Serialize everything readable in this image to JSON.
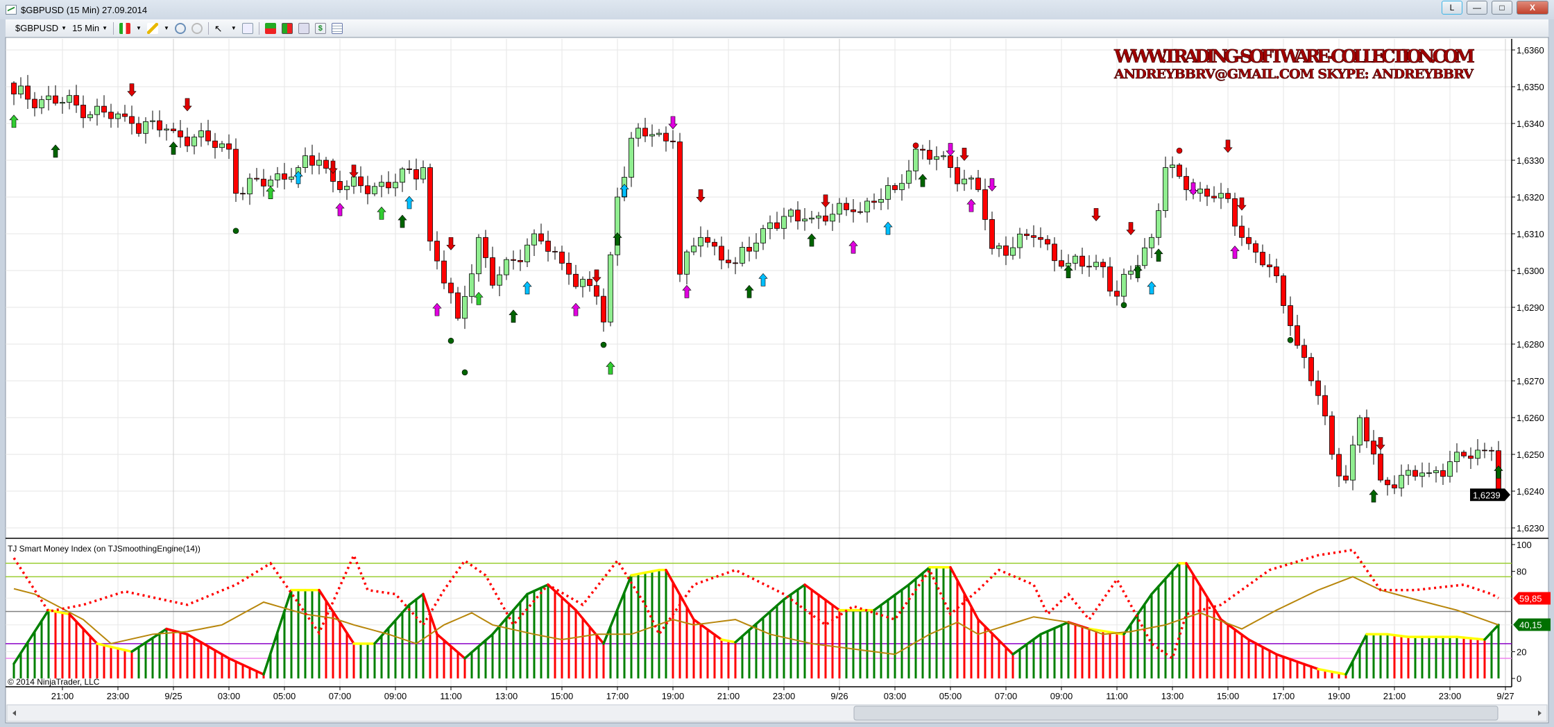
{
  "window": {
    "title": "$GBPUSD (15 Min)  27.09.2014",
    "layout_button": "L",
    "minimize": "—",
    "maximize": "□",
    "close": "X"
  },
  "toolbar": {
    "instrument": "$GBPUSD",
    "interval": "15 Min",
    "icons": [
      "bar-type-icon",
      "drawing-pencil-icon",
      "zoom-in-icon",
      "zoom-out-icon",
      "pointer-icon",
      "data-box-icon",
      "indicators-icon",
      "strategies-icon",
      "chart-trader-icon",
      "dollar-icon",
      "properties-icon"
    ]
  },
  "watermark": {
    "line1": "WWW.TRADING-SOFTWARE-COLLECTION.COM",
    "line2": "ANDREYBBRV@GMAIL.COM   SKYPE: ANDREYBBRV"
  },
  "indicator": {
    "label": "TJ Smart Money Index (on TJSmoothingEngine(14))",
    "copyright": "© 2014 NinjaTrader, LLC",
    "flag_red": "59,85",
    "flag_green": "40,15",
    "levels": [
      "100",
      "80",
      "20",
      "0"
    ]
  },
  "chart_data": {
    "type": "candlestick",
    "title": "$GBPUSD (15 Min)",
    "bars": 215,
    "price_ticks": [
      "1,6360",
      "1,6350",
      "1,6340",
      "1,6330",
      "1,6320",
      "1,6310",
      "1,6300",
      "1,6290",
      "1,6280",
      "1,6270",
      "1,6260",
      "1,6250",
      "1,6240",
      "1,6230"
    ],
    "ylim": [
      1.6228,
      1.6364
    ],
    "last_price": "1,6239",
    "time_labels": [
      "21:00",
      "23:00",
      "9/25",
      "03:00",
      "05:00",
      "07:00",
      "09:00",
      "11:00",
      "13:00",
      "15:00",
      "17:00",
      "19:00",
      "21:00",
      "23:00",
      "9/26",
      "03:00",
      "05:00",
      "07:00",
      "09:00",
      "11:00",
      "13:00",
      "15:00",
      "17:00",
      "19:00",
      "21:00",
      "23:00",
      "9/27"
    ],
    "close_path": [
      [
        0,
        1.6348
      ],
      [
        9,
        1.6345
      ],
      [
        17,
        1.634
      ],
      [
        23,
        1.6338
      ],
      [
        31,
        1.6333
      ],
      [
        32,
        1.6321
      ],
      [
        41,
        1.6328
      ],
      [
        44,
        1.633
      ],
      [
        47,
        1.6322
      ],
      [
        55,
        1.6324
      ],
      [
        59,
        1.6328
      ],
      [
        60,
        1.6308
      ],
      [
        64,
        1.6287
      ],
      [
        67,
        1.6309
      ],
      [
        69,
        1.6296
      ],
      [
        75,
        1.631
      ],
      [
        80,
        1.6299
      ],
      [
        84,
        1.6293
      ],
      [
        85,
        1.6286
      ],
      [
        87,
        1.632
      ],
      [
        89,
        1.6336
      ],
      [
        92,
        1.6337
      ],
      [
        95,
        1.6335
      ],
      [
        96,
        1.6299
      ],
      [
        99,
        1.6309
      ],
      [
        104,
        1.6302
      ],
      [
        109,
        1.6313
      ],
      [
        114,
        1.6314
      ],
      [
        121,
        1.6316
      ],
      [
        127,
        1.6322
      ],
      [
        130,
        1.6333
      ],
      [
        135,
        1.6328
      ],
      [
        139,
        1.6322
      ],
      [
        141,
        1.6306
      ],
      [
        147,
        1.6309
      ],
      [
        152,
        1.6302
      ],
      [
        157,
        1.6301
      ],
      [
        159,
        1.6293
      ],
      [
        164,
        1.6309
      ],
      [
        166,
        1.6328
      ],
      [
        169,
        1.6322
      ],
      [
        174,
        1.6321
      ],
      [
        177,
        1.6309
      ],
      [
        181,
        1.6301
      ],
      [
        184,
        1.6285
      ],
      [
        188,
        1.6266
      ],
      [
        190,
        1.625
      ],
      [
        192,
        1.6243
      ],
      [
        194,
        1.626
      ],
      [
        197,
        1.6243
      ],
      [
        204,
        1.6245
      ],
      [
        207,
        1.6248
      ],
      [
        213,
        1.6251
      ],
      [
        214,
        1.6239
      ]
    ],
    "markers": [
      {
        "k": "down-red",
        "b": 17,
        "p": 1.63493
      },
      {
        "k": "down-red",
        "b": 25,
        "p": 1.63453
      },
      {
        "k": "down-red",
        "b": 46,
        "p": 1.63283
      },
      {
        "k": "down-red",
        "b": 49,
        "p": 1.63272
      },
      {
        "k": "down-red",
        "b": 63,
        "p": 1.63075
      },
      {
        "k": "down-red",
        "b": 84,
        "p": 1.62987
      },
      {
        "k": "down-red",
        "b": 99,
        "p": 1.63205
      },
      {
        "k": "down-red",
        "b": 117,
        "p": 1.63191
      },
      {
        "k": "down-red",
        "b": 137,
        "p": 1.63318
      },
      {
        "k": "down-red",
        "b": 156,
        "p": 1.63154
      },
      {
        "k": "down-red",
        "b": 161,
        "p": 1.63116
      },
      {
        "k": "down-red",
        "b": 175,
        "p": 1.6334
      },
      {
        "k": "down-red",
        "b": 177,
        "p": 1.63183
      },
      {
        "k": "down-red",
        "b": 197,
        "p": 1.62531
      },
      {
        "k": "up-dark",
        "b": 6,
        "p": 1.63323
      },
      {
        "k": "up-dark",
        "b": 23,
        "p": 1.63331
      },
      {
        "k": "up-dark",
        "b": 56,
        "p": 1.63132
      },
      {
        "k": "up-dark",
        "b": 72,
        "p": 1.62874
      },
      {
        "k": "up-dark",
        "b": 87,
        "p": 1.63084
      },
      {
        "k": "up-dark",
        "b": 106,
        "p": 1.62941
      },
      {
        "k": "up-dark",
        "b": 115,
        "p": 1.63081
      },
      {
        "k": "up-dark",
        "b": 131,
        "p": 1.63243
      },
      {
        "k": "up-dark",
        "b": 152,
        "p": 1.62995
      },
      {
        "k": "up-dark",
        "b": 162,
        "p": 1.62995
      },
      {
        "k": "up-dark",
        "b": 165,
        "p": 1.6304
      },
      {
        "k": "up-dark",
        "b": 196,
        "p": 1.62385
      },
      {
        "k": "up-dark",
        "b": 214,
        "p": 1.6245
      },
      {
        "k": "up-light",
        "b": 0,
        "p": 1.63404
      },
      {
        "k": "up-light",
        "b": 37,
        "p": 1.6321
      },
      {
        "k": "up-light",
        "b": 53,
        "p": 1.63154
      },
      {
        "k": "up-light",
        "b": 67,
        "p": 1.62922
      },
      {
        "k": "up-light",
        "b": 86,
        "p": 1.62733
      },
      {
        "k": "up-cyan",
        "b": 41,
        "p": 1.63251
      },
      {
        "k": "up-cyan",
        "b": 57,
        "p": 1.63183
      },
      {
        "k": "up-cyan",
        "b": 74,
        "p": 1.62951
      },
      {
        "k": "up-cyan",
        "b": 88,
        "p": 1.63216
      },
      {
        "k": "up-cyan",
        "b": 108,
        "p": 1.62973
      },
      {
        "k": "up-cyan",
        "b": 126,
        "p": 1.63113
      },
      {
        "k": "up-cyan",
        "b": 164,
        "p": 1.62951
      },
      {
        "k": "up-magenta",
        "b": 47,
        "p": 1.63164
      },
      {
        "k": "up-magenta",
        "b": 61,
        "p": 1.62892
      },
      {
        "k": "up-magenta",
        "b": 81,
        "p": 1.62892
      },
      {
        "k": "up-magenta",
        "b": 97,
        "p": 1.62941
      },
      {
        "k": "up-magenta",
        "b": 121,
        "p": 1.63062
      },
      {
        "k": "up-magenta",
        "b": 138,
        "p": 1.63175
      },
      {
        "k": "up-magenta",
        "b": 176,
        "p": 1.63048
      },
      {
        "k": "down-magenta",
        "b": 95,
        "p": 1.63404
      },
      {
        "k": "down-magenta",
        "b": 135,
        "p": 1.63331
      },
      {
        "k": "down-magenta",
        "b": 141,
        "p": 1.63235
      },
      {
        "k": "down-magenta",
        "b": 170,
        "p": 1.63224
      },
      {
        "k": "dot-green",
        "b": 32,
        "p": 1.63108
      },
      {
        "k": "dot-green",
        "b": 63,
        "p": 1.62809
      },
      {
        "k": "dot-green",
        "b": 65,
        "p": 1.62723
      },
      {
        "k": "dot-green",
        "b": 85,
        "p": 1.62798
      },
      {
        "k": "dot-green",
        "b": 160,
        "p": 1.62906
      },
      {
        "k": "dot-green",
        "b": 184,
        "p": 1.62811
      },
      {
        "k": "dot-red",
        "b": 130,
        "p": 1.6334
      },
      {
        "k": "dot-red",
        "b": 168,
        "p": 1.63326
      }
    ],
    "indicator": {
      "ylim": [
        0,
        100
      ],
      "hlines": [
        {
          "v": 86,
          "c": "#9acd32"
        },
        {
          "v": 76,
          "c": "#9acd32"
        },
        {
          "v": 50,
          "c": "#808080"
        },
        {
          "v": 26,
          "c": "#8b00c8"
        },
        {
          "v": 15,
          "c": "#ee82ee"
        }
      ],
      "smi": [
        [
          0,
          11
        ],
        [
          5,
          51
        ],
        [
          8,
          48
        ],
        [
          12,
          26
        ],
        [
          17,
          20
        ],
        [
          22,
          37
        ],
        [
          25,
          33
        ],
        [
          31,
          15
        ],
        [
          36,
          3
        ],
        [
          40,
          66
        ],
        [
          44,
          66
        ],
        [
          49,
          26
        ],
        [
          52,
          26
        ],
        [
          57,
          55
        ],
        [
          59,
          63
        ],
        [
          61,
          33
        ],
        [
          65,
          15
        ],
        [
          69,
          33
        ],
        [
          74,
          63
        ],
        [
          77,
          70
        ],
        [
          81,
          51
        ],
        [
          85,
          26
        ],
        [
          89,
          77
        ],
        [
          93,
          81
        ],
        [
          94,
          81
        ],
        [
          98,
          44
        ],
        [
          102,
          29
        ],
        [
          104,
          27
        ],
        [
          111,
          59
        ],
        [
          114,
          70
        ],
        [
          119,
          51
        ],
        [
          124,
          51
        ],
        [
          129,
          70
        ],
        [
          132,
          83
        ],
        [
          135,
          83
        ],
        [
          139,
          44
        ],
        [
          144,
          18
        ],
        [
          148,
          33
        ],
        [
          152,
          42
        ],
        [
          155,
          37
        ],
        [
          160,
          33
        ],
        [
          164,
          63
        ],
        [
          168,
          86
        ],
        [
          169,
          86
        ],
        [
          174,
          44
        ],
        [
          178,
          29
        ],
        [
          182,
          18
        ],
        [
          188,
          7
        ],
        [
          192,
          3
        ],
        [
          195,
          33
        ],
        [
          198,
          33
        ],
        [
          201,
          31
        ],
        [
          208,
          31
        ],
        [
          212,
          29
        ],
        [
          214,
          40
        ]
      ],
      "signal_dotted": [
        [
          0,
          90
        ],
        [
          5,
          50
        ],
        [
          10,
          55
        ],
        [
          16,
          65
        ],
        [
          25,
          55
        ],
        [
          32,
          70
        ],
        [
          37,
          86
        ],
        [
          44,
          34
        ],
        [
          49,
          92
        ],
        [
          51,
          66
        ],
        [
          55,
          63
        ],
        [
          59,
          40
        ],
        [
          62,
          66
        ],
        [
          65,
          88
        ],
        [
          68,
          77
        ],
        [
          72,
          40
        ],
        [
          77,
          70
        ],
        [
          82,
          55
        ],
        [
          87,
          88
        ],
        [
          91,
          55
        ],
        [
          93,
          33
        ],
        [
          98,
          70
        ],
        [
          104,
          81
        ],
        [
          111,
          63
        ],
        [
          117,
          40
        ],
        [
          121,
          54
        ],
        [
          127,
          44
        ],
        [
          132,
          81
        ],
        [
          135,
          48
        ],
        [
          139,
          66
        ],
        [
          142,
          81
        ],
        [
          147,
          70
        ],
        [
          149,
          48
        ],
        [
          152,
          63
        ],
        [
          155,
          44
        ],
        [
          159,
          74
        ],
        [
          164,
          26
        ],
        [
          167,
          15
        ],
        [
          169,
          48
        ],
        [
          174,
          55
        ],
        [
          181,
          81
        ],
        [
          188,
          92
        ],
        [
          193,
          96
        ],
        [
          197,
          66
        ],
        [
          202,
          66
        ],
        [
          209,
          70
        ],
        [
          213,
          63
        ],
        [
          214,
          60
        ]
      ],
      "signal_gold": [
        [
          0,
          67
        ],
        [
          3,
          63
        ],
        [
          10,
          44
        ],
        [
          14,
          26
        ],
        [
          20,
          33
        ],
        [
          25,
          35
        ],
        [
          30,
          40
        ],
        [
          36,
          57
        ],
        [
          42,
          48
        ],
        [
          46,
          45
        ],
        [
          49,
          40
        ],
        [
          54,
          33
        ],
        [
          58,
          26
        ],
        [
          62,
          40
        ],
        [
          66,
          49
        ],
        [
          69,
          40
        ],
        [
          75,
          33
        ],
        [
          79,
          29
        ],
        [
          84,
          33
        ],
        [
          89,
          33
        ],
        [
          95,
          44
        ],
        [
          98,
          40
        ],
        [
          104,
          44
        ],
        [
          109,
          33
        ],
        [
          115,
          26
        ],
        [
          121,
          22
        ],
        [
          127,
          18
        ],
        [
          132,
          33
        ],
        [
          136,
          42
        ],
        [
          139,
          33
        ],
        [
          147,
          46
        ],
        [
          152,
          42
        ],
        [
          157,
          33
        ],
        [
          161,
          35
        ],
        [
          166,
          40
        ],
        [
          171,
          49
        ],
        [
          177,
          37
        ],
        [
          182,
          51
        ],
        [
          188,
          66
        ],
        [
          193,
          76
        ],
        [
          197,
          66
        ],
        [
          202,
          59
        ],
        [
          208,
          51
        ],
        [
          214,
          40
        ]
      ]
    },
    "colors": {
      "up": "#90ee90",
      "down": "#ff0000",
      "smi_up": "#008000",
      "smi_down": "#ff0000",
      "flat": "#ffff00",
      "gold": "#b8860b"
    }
  }
}
